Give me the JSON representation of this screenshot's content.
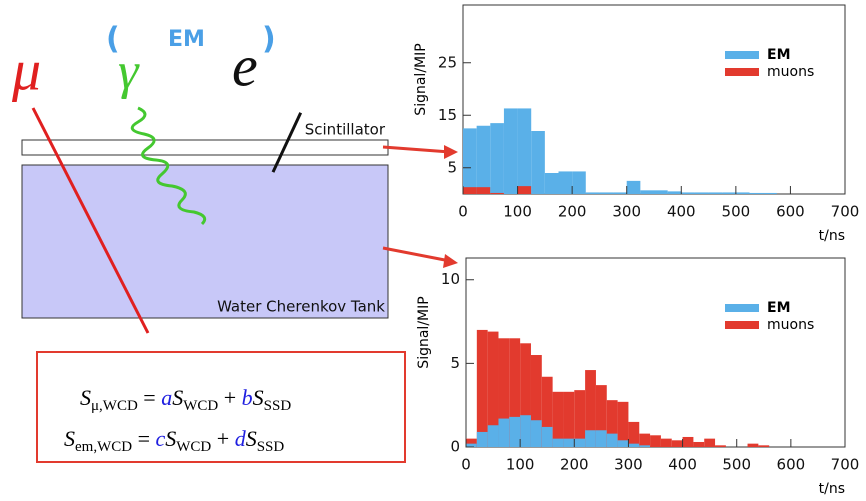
{
  "chart_data": [
    {
      "type": "histogram",
      "ylabel": "Signal/MIP",
      "xlabel": "t/ns",
      "bins": [
        0,
        25,
        50,
        75,
        100,
        125,
        150,
        175,
        200,
        225,
        250,
        275,
        300,
        325,
        350,
        375,
        400,
        425,
        450,
        475,
        500,
        525,
        550,
        575,
        600,
        625,
        650,
        675,
        700
      ],
      "series": [
        {
          "name": "EM",
          "color": "#5ab0e8",
          "values": [
            12.5,
            13,
            13.5,
            16.3,
            16.3,
            12,
            4,
            4.3,
            4.3,
            0.3,
            0.3,
            0.3,
            2.5,
            0.7,
            0.7,
            0.5,
            0.3,
            0.3,
            0.3,
            0.3,
            0.3,
            0.2,
            0.2,
            0,
            0,
            0,
            0,
            0
          ]
        },
        {
          "name": "muons",
          "color": "#e23a2e",
          "values": [
            1.3,
            1.3,
            0.2,
            0,
            1.5,
            0,
            0,
            0,
            0,
            0,
            0,
            0,
            0,
            0,
            0,
            0,
            0,
            0,
            0,
            0,
            0,
            0,
            0,
            0,
            0,
            0,
            0,
            0
          ]
        }
      ],
      "xlim": [
        0,
        700
      ],
      "xticks": [
        0,
        100,
        200,
        300,
        400,
        500,
        600,
        700
      ],
      "ylim": [
        0,
        36
      ],
      "yticks": [
        5,
        15,
        25
      ],
      "legend": "upper right"
    },
    {
      "type": "histogram",
      "ylabel": "Signal/MIP",
      "xlabel": "t/ns",
      "bins": [
        0,
        20,
        40,
        60,
        80,
        100,
        120,
        140,
        160,
        180,
        200,
        220,
        240,
        260,
        280,
        300,
        320,
        340,
        360,
        380,
        400,
        420,
        440,
        460,
        480,
        500,
        520,
        540,
        560,
        580,
        600,
        620,
        640,
        660,
        680,
        700
      ],
      "series": [
        {
          "name": "EM",
          "color": "#5ab0e8",
          "values": [
            0.2,
            0.9,
            1.3,
            1.7,
            1.8,
            1.9,
            1.6,
            1.2,
            0.5,
            0.5,
            0.5,
            1.0,
            1.0,
            0.8,
            0.4,
            0.2,
            0.1,
            0,
            0,
            0,
            0,
            0,
            0,
            0,
            0,
            0,
            0,
            0,
            0,
            0,
            0,
            0,
            0,
            0,
            0
          ]
        },
        {
          "name": "muons",
          "color": "#e23a2e",
          "values": [
            0.5,
            7.0,
            6.9,
            6.5,
            6.5,
            6.2,
            5.5,
            4.2,
            3.3,
            3.3,
            3.4,
            4.6,
            3.7,
            2.8,
            2.7,
            1.5,
            0.8,
            0.7,
            0.5,
            0.4,
            0.6,
            0.3,
            0.5,
            0.1,
            0,
            0,
            0.2,
            0.1,
            0,
            0,
            0,
            0,
            0,
            0,
            0
          ]
        }
      ],
      "xlim": [
        0,
        700
      ],
      "xticks": [
        0,
        100,
        200,
        300,
        400,
        500,
        600,
        700
      ],
      "ylim": [
        0,
        11.3
      ],
      "yticks": [
        0,
        5,
        10
      ],
      "legend": "upper right"
    }
  ],
  "diagram": {
    "bracket_open": "(",
    "em_label": "EM",
    "bracket_close": ")",
    "muon": "μ",
    "gamma": "γ",
    "electron": "e",
    "scintillator": "Scintillator",
    "tank": "Water Cherenkov Tank",
    "formula1": [
      "S",
      "μ,WCD",
      " = ",
      "a",
      "S",
      "WCD",
      " + ",
      "b",
      "S",
      "SSD"
    ],
    "formula2": [
      "S",
      "em,WCD",
      " = ",
      "c",
      "S",
      "WCD",
      " + ",
      "d",
      "S",
      "SSD"
    ]
  }
}
